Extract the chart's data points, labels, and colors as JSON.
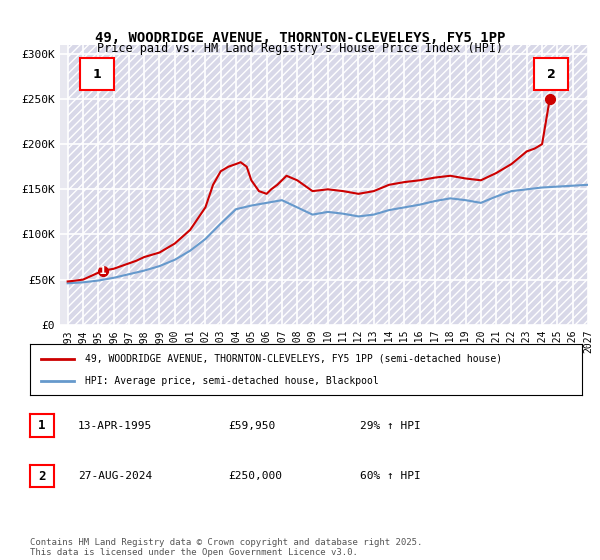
{
  "title_line1": "49, WOODRIDGE AVENUE, THORNTON-CLEVELEYS, FY5 1PP",
  "title_line2": "Price paid vs. HM Land Registry's House Price Index (HPI)",
  "ylabel": "",
  "background_color": "#ffffff",
  "plot_bg_color": "#e8e8f0",
  "hatch_color": "#ccccdd",
  "grid_color": "#ffffff",
  "property_color": "#cc0000",
  "hpi_color": "#6699cc",
  "ylim": [
    0,
    310000
  ],
  "yticks": [
    0,
    50000,
    100000,
    150000,
    200000,
    250000,
    300000
  ],
  "ytick_labels": [
    "£0",
    "£50K",
    "£100K",
    "£150K",
    "£200K",
    "£250K",
    "£300K"
  ],
  "legend_label1": "49, WOODRIDGE AVENUE, THORNTON-CLEVELEYS, FY5 1PP (semi-detached house)",
  "legend_label2": "HPI: Average price, semi-detached house, Blackpool",
  "point1_label": "1",
  "point1_date": "13-APR-1995",
  "point1_price": "£59,950",
  "point1_hpi": "29% ↑ HPI",
  "point2_label": "2",
  "point2_date": "27-AUG-2024",
  "point2_price": "£250,000",
  "point2_hpi": "60% ↑ HPI",
  "footer": "Contains HM Land Registry data © Crown copyright and database right 2025.\nThis data is licensed under the Open Government Licence v3.0.",
  "property_years": [
    1993,
    1993.3,
    1994,
    1995.3,
    1995.5,
    1996,
    1997,
    1997.5,
    1998,
    1999,
    2000,
    2001,
    2002,
    2002.5,
    2003,
    2003.5,
    2004,
    2004.3,
    2004.7,
    2005,
    2005.5,
    2006,
    2006.3,
    2006.7,
    2007,
    2007.3,
    2008,
    2009,
    2010,
    2011,
    2012,
    2013,
    2014,
    2015,
    2016,
    2017,
    2018,
    2019,
    2020,
    2021,
    2022,
    2022.5,
    2023,
    2023.5,
    2024,
    2024.5,
    2024.67
  ],
  "property_values": [
    48000,
    48500,
    50000,
    59950,
    60500,
    62000,
    68000,
    71000,
    75000,
    80000,
    90000,
    105000,
    130000,
    155000,
    170000,
    175000,
    178000,
    180000,
    175000,
    160000,
    148000,
    145000,
    150000,
    155000,
    160000,
    165000,
    160000,
    148000,
    150000,
    148000,
    145000,
    148000,
    155000,
    158000,
    160000,
    163000,
    165000,
    162000,
    160000,
    168000,
    178000,
    185000,
    192000,
    195000,
    200000,
    250000,
    252000
  ],
  "hpi_years": [
    1993,
    1994,
    1995,
    1996,
    1997,
    1998,
    1999,
    2000,
    2001,
    2002,
    2003,
    2004,
    2005,
    2006,
    2007,
    2008,
    2009,
    2010,
    2011,
    2012,
    2013,
    2014,
    2015,
    2016,
    2017,
    2018,
    2019,
    2020,
    2021,
    2022,
    2023,
    2024,
    2025,
    2026,
    2027
  ],
  "hpi_values": [
    46000,
    47000,
    49000,
    52000,
    56000,
    60000,
    65000,
    72000,
    82000,
    95000,
    112000,
    128000,
    132000,
    135000,
    138000,
    130000,
    122000,
    125000,
    123000,
    120000,
    122000,
    127000,
    130000,
    133000,
    137000,
    140000,
    138000,
    135000,
    142000,
    148000,
    150000,
    152000,
    153000,
    154000,
    155000
  ]
}
